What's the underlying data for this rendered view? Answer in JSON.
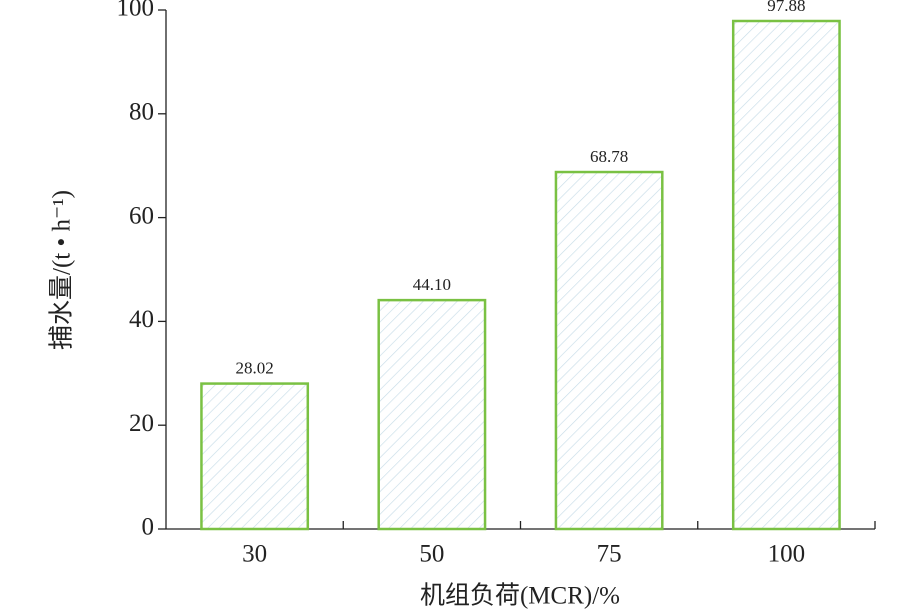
{
  "chart_data": {
    "type": "bar",
    "categories": [
      "30",
      "50",
      "75",
      "100"
    ],
    "values": [
      28.02,
      44.1,
      68.78,
      97.88
    ],
    "value_labels": [
      "28.02",
      "44.10",
      "68.78",
      "97.88"
    ],
    "color": "#7ac143",
    "hatch_color": "#c7dce8",
    "xlabel": "机组负荷(MCR)/%",
    "ylabel": "捕水量/(t • h⁻¹)",
    "ylim": [
      0,
      100
    ],
    "yticks": [
      0,
      20,
      40,
      60,
      80,
      100
    ],
    "grid": false
  }
}
